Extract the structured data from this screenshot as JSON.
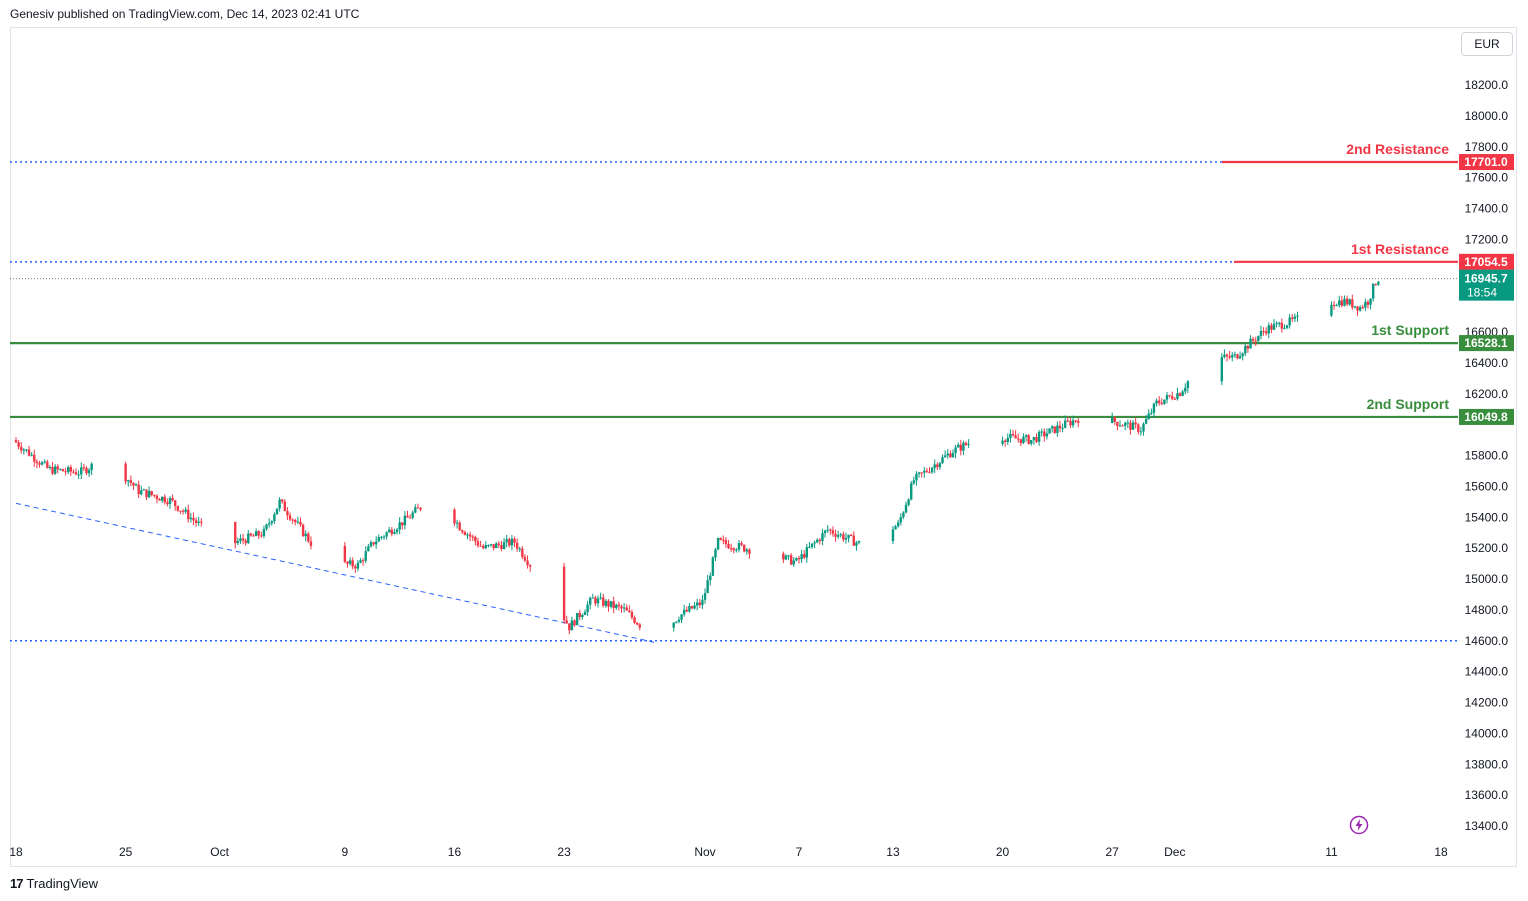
{
  "header": {
    "published": "Genesiv published on TradingView.com, Dec 14, 2023 02:41 UTC"
  },
  "currency_button": "EUR",
  "footer": {
    "brand": "TradingView"
  },
  "icons": {
    "logo": "tradingview-logo-icon",
    "lightning": "lightning-icon"
  },
  "colors": {
    "bull": "#089981",
    "bear": "#f23645",
    "support": "#388e3c",
    "resistance": "#f23645",
    "dotted": "#2962ff",
    "last": "#089981"
  },
  "chart_data": {
    "type": "candlestick",
    "title": "",
    "y_axis": {
      "range": [
        13300,
        18450
      ],
      "tick_labels": [
        "18200.0",
        "18000.0",
        "17800.0",
        "17600.0",
        "17400.0",
        "17200.0",
        "16600.0",
        "16400.0",
        "16200.0",
        "15800.0",
        "15600.0",
        "15400.0",
        "15200.0",
        "15000.0",
        "14800.0",
        "14600.0",
        "14400.0",
        "14200.0",
        "14000.0",
        "13800.0",
        "13600.0",
        "13400.0"
      ],
      "tick_values": [
        18200,
        18000,
        17800,
        17600,
        17400,
        17200,
        16600,
        16400,
        16200,
        15800,
        15600,
        15400,
        15200,
        15000,
        14800,
        14600,
        14400,
        14200,
        14000,
        13800,
        13600,
        13400
      ]
    },
    "x_axis": {
      "labels": [
        "18",
        "25",
        "Oct",
        "9",
        "16",
        "23",
        "Nov",
        "7",
        "13",
        "20",
        "27",
        "Dec",
        "11",
        "18"
      ],
      "dates": [
        "2023-09-18",
        "2023-09-25",
        "2023-10-01",
        "2023-10-09",
        "2023-10-16",
        "2023-10-23",
        "2023-11-01",
        "2023-11-07",
        "2023-11-13",
        "2023-11-20",
        "2023-11-27",
        "2023-12-01",
        "2023-12-11",
        "2023-12-18"
      ],
      "range": [
        "2023-09-18",
        "2023-12-24"
      ]
    },
    "levels": [
      {
        "label": "2nd Resistance",
        "value": 17701.0,
        "value_label": "17701.0",
        "kind": "resistance"
      },
      {
        "label": "1st Resistance",
        "value": 17054.5,
        "value_label": "17054.5",
        "kind": "resistance"
      },
      {
        "label": "1st Support",
        "value": 16528.1,
        "value_label": "16528.1",
        "kind": "support"
      },
      {
        "label": "2nd Support",
        "value": 16049.8,
        "value_label": "16049.8",
        "kind": "support"
      }
    ],
    "horizontal_line": {
      "value": 14600
    },
    "trendline": {
      "start": [
        "2023-09-18",
        15490
      ],
      "end": [
        "2023-10-29",
        14585
      ]
    },
    "last_price": {
      "value": 16945.7,
      "value_label": "16945.7",
      "countdown": "18:54"
    },
    "anchors": [
      [
        "2023-09-18T00:00",
        15900
      ],
      [
        "2023-09-20T06:00",
        15710
      ],
      [
        "2023-09-22T06:00",
        15690
      ],
      [
        "2023-09-24T00:00",
        15790
      ],
      [
        "2023-09-26T00:00",
        15570
      ],
      [
        "2023-09-28T00:00",
        15510
      ],
      [
        "2023-09-30T00:00",
        15340
      ],
      [
        "2023-10-02T00:00",
        15230
      ],
      [
        "2023-10-04T00:00",
        15300
      ],
      [
        "2023-10-05T00:00",
        15500
      ],
      [
        "2023-10-06T00:00",
        15370
      ],
      [
        "2023-10-08T00:00",
        15100
      ],
      [
        "2023-10-10T00:00",
        15090
      ],
      [
        "2023-10-11T00:00",
        15240
      ],
      [
        "2023-10-13T00:00",
        15380
      ],
      [
        "2023-10-15T00:00",
        15550
      ],
      [
        "2023-10-16T12:00",
        15340
      ],
      [
        "2023-10-18T00:00",
        15200
      ],
      [
        "2023-10-20T00:00",
        15240
      ],
      [
        "2023-10-22T00:00",
        14950
      ],
      [
        "2023-10-23T12:00",
        14690
      ],
      [
        "2023-10-25T00:00",
        14870
      ],
      [
        "2023-10-27T00:00",
        14800
      ],
      [
        "2023-10-29T00:00",
        14610
      ],
      [
        "2023-10-30T12:00",
        14760
      ],
      [
        "2023-11-01T00:00",
        14850
      ],
      [
        "2023-11-02T00:00",
        15240
      ],
      [
        "2023-11-05T00:00",
        15170
      ],
      [
        "2023-11-07T00:00",
        15110
      ],
      [
        "2023-11-09T00:00",
        15320
      ],
      [
        "2023-11-11T00:00",
        15230
      ],
      [
        "2023-11-13T12:00",
        15350
      ],
      [
        "2023-11-14T12:00",
        15640
      ],
      [
        "2023-11-17T00:00",
        15830
      ],
      [
        "2023-11-19T00:00",
        15930
      ],
      [
        "2023-11-22T00:00",
        15900
      ],
      [
        "2023-11-25T00:00",
        16040
      ],
      [
        "2023-11-27T00:00",
        16030
      ],
      [
        "2023-11-29T00:00",
        15970
      ],
      [
        "2023-11-30T00:00",
        16140
      ],
      [
        "2023-12-01T12:00",
        16210
      ],
      [
        "2023-12-03T00:00",
        16420
      ],
      [
        "2023-12-05T00:00",
        16440
      ],
      [
        "2023-12-07T00:00",
        16620
      ],
      [
        "2023-12-09T00:00",
        16680
      ],
      [
        "2023-12-10T12:00",
        16790
      ],
      [
        "2023-12-12T00:00",
        16800
      ],
      [
        "2023-12-13T00:00",
        16760
      ],
      [
        "2023-12-13T12:00",
        16800
      ],
      [
        "2023-12-14T02:00",
        16945.7
      ]
    ],
    "candle_interval_hours": 4,
    "grid": false
  }
}
